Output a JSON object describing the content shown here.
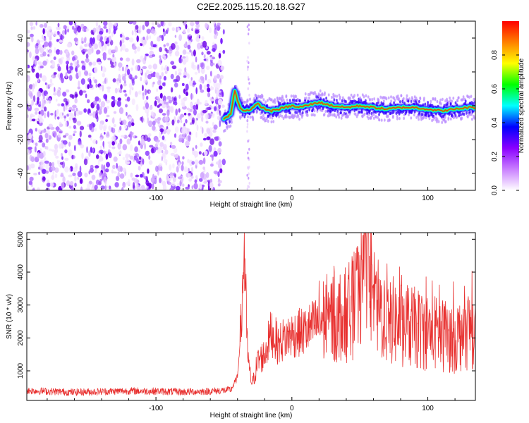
{
  "title": "C2E2.2025.115.20.18.G27",
  "chart_data": [
    {
      "type": "heatmap",
      "panel": "spectrogram",
      "xlabel": "Height of straight line (km)",
      "ylabel": "Frequency (Hz)",
      "xlim": [
        -195,
        135
      ],
      "ylim": [
        -50,
        50
      ],
      "xticks": [
        -100,
        0,
        100
      ],
      "xtick_labels": [
        "-100",
        "0",
        "100"
      ],
      "yticks": [
        -40,
        -20,
        0,
        20,
        40
      ],
      "ytick_labels": [
        "-40",
        "-20",
        "0",
        "20",
        "40"
      ],
      "noise_region_x": [
        -195,
        -50
      ],
      "track": {
        "name": "",
        "x": [
          -50,
          -45,
          -42,
          -40,
          -38,
          -35,
          -30,
          -25,
          -20,
          -15,
          -10,
          -5,
          0,
          5,
          10,
          15,
          20,
          25,
          30,
          40,
          50,
          60,
          70,
          80,
          90,
          100,
          110,
          120,
          130,
          135
        ],
        "y": [
          -8,
          -5,
          9,
          3,
          -1,
          -3,
          -2,
          1,
          -2,
          -3,
          -2,
          -1,
          0,
          -1,
          0,
          1,
          2,
          1,
          0,
          -1,
          0,
          -1,
          -2,
          -1,
          -1,
          -2,
          -3,
          -2,
          -1,
          -1
        ]
      },
      "colorbar": {
        "label": "Normalized spectral amplitude",
        "range": [
          0,
          1
        ],
        "ticks": [
          0.0,
          0.2,
          0.4,
          0.6,
          0.8
        ],
        "tick_labels": [
          "0.0",
          "0.2",
          "0.4",
          "0.6",
          "0.8"
        ],
        "colors": [
          "#ffffff",
          "#c97fff",
          "#8a00ff",
          "#0000ff",
          "#00ffff",
          "#00ff00",
          "#ffff00",
          "#ff8000",
          "#ff0000"
        ]
      }
    },
    {
      "type": "line",
      "panel": "snr",
      "xlabel": "Height of straight line (km)",
      "ylabel": "SNR (10 * v/v)",
      "xlim": [
        -195,
        135
      ],
      "ylim": [
        100,
        5200
      ],
      "xticks": [
        -100,
        0,
        100
      ],
      "xtick_labels": [
        "-100",
        "0",
        "100"
      ],
      "yticks": [
        1000,
        2000,
        3000,
        4000,
        5000
      ],
      "ytick_labels": [
        "1000",
        "2000",
        "3000",
        "4000",
        "5000"
      ],
      "color": "#e8302f",
      "series": [
        {
          "name": "",
          "x": [
            -195,
            -180,
            -160,
            -140,
            -120,
            -100,
            -80,
            -60,
            -45,
            -40,
            -37,
            -35,
            -33,
            -31,
            -29,
            -25,
            -20,
            -15,
            -10,
            -5,
            0,
            10,
            20,
            30,
            40,
            50,
            55,
            60,
            70,
            80,
            90,
            100,
            110,
            120,
            130,
            135
          ],
          "y": [
            400,
            380,
            350,
            370,
            390,
            380,
            360,
            380,
            420,
            800,
            2600,
            4900,
            1800,
            900,
            600,
            1300,
            1500,
            2200,
            1800,
            2000,
            2100,
            2200,
            2500,
            2600,
            2700,
            3200,
            5100,
            3000,
            2600,
            2400,
            2300,
            2200,
            2100,
            2000,
            2300,
            2200
          ]
        }
      ]
    }
  ]
}
